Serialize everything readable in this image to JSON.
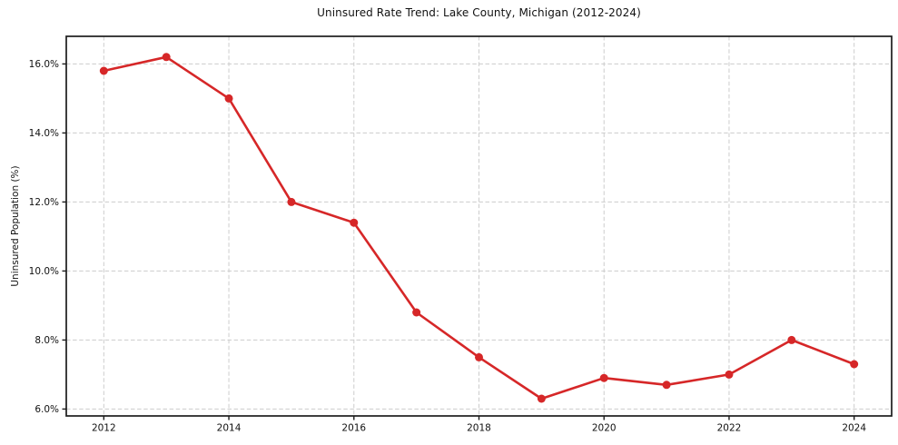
{
  "chart_data": {
    "type": "line",
    "title": "Uninsured Rate Trend: Lake County, Michigan (2012-2024)",
    "xlabel": "",
    "ylabel": "Uninsured Population (%)",
    "x": [
      2012,
      2013,
      2014,
      2015,
      2016,
      2017,
      2018,
      2019,
      2020,
      2021,
      2022,
      2023,
      2024
    ],
    "values": [
      15.8,
      16.2,
      15.0,
      12.0,
      11.4,
      8.8,
      7.5,
      6.3,
      6.9,
      6.7,
      7.0,
      8.0,
      7.3
    ],
    "x_ticks": [
      2012,
      2014,
      2016,
      2018,
      2020,
      2022,
      2024
    ],
    "x_tick_labels": [
      "2012",
      "2014",
      "2016",
      "2018",
      "2020",
      "2022",
      "2024"
    ],
    "y_ticks": [
      6,
      8,
      10,
      12,
      14,
      16
    ],
    "y_tick_labels": [
      "6.0%",
      "8.0%",
      "10.0%",
      "12.0%",
      "14.0%",
      "16.0%"
    ],
    "xlim": [
      2011.4,
      2024.6
    ],
    "ylim": [
      5.8,
      16.8
    ],
    "grid": true,
    "grid_style": "dashed",
    "legend_position": "none",
    "line_color": "#d62728",
    "marker": "circle"
  },
  "style": {
    "background": "#ffffff",
    "grid_color": "#cccccc",
    "spine_color": "#1c1c1c",
    "tick_color": "#1c1c1c",
    "text_color": "#111111"
  }
}
